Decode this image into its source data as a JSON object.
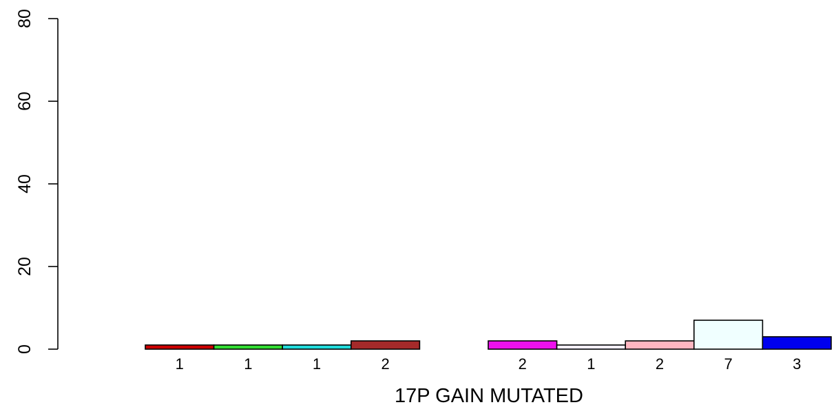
{
  "chart_data": {
    "type": "bar",
    "xlabel": "17P GAIN MUTATED",
    "ylabel": "",
    "ylim": [
      0,
      80
    ],
    "yticks": [
      0,
      20,
      40,
      60,
      80
    ],
    "grid": false,
    "legend": "none",
    "bars": [
      {
        "value": 1,
        "label": "1",
        "color": "#cc0000"
      },
      {
        "value": 1,
        "label": "1",
        "color": "#33dd33"
      },
      {
        "value": 1,
        "label": "1",
        "color": "#22dddd"
      },
      {
        "value": 2,
        "label": "2",
        "color": "#a52a2a"
      },
      {
        "value": 0,
        "label": "",
        "color": "#ffffff"
      },
      {
        "value": 2,
        "label": "2",
        "color": "#ee11ee"
      },
      {
        "value": 1,
        "label": "1",
        "color": "#f4f0ff"
      },
      {
        "value": 2,
        "label": "2",
        "color": "#ffb6c1"
      },
      {
        "value": 7,
        "label": "7",
        "color": "#f0ffff"
      },
      {
        "value": 3,
        "label": "3",
        "color": "#0000ee"
      }
    ]
  }
}
